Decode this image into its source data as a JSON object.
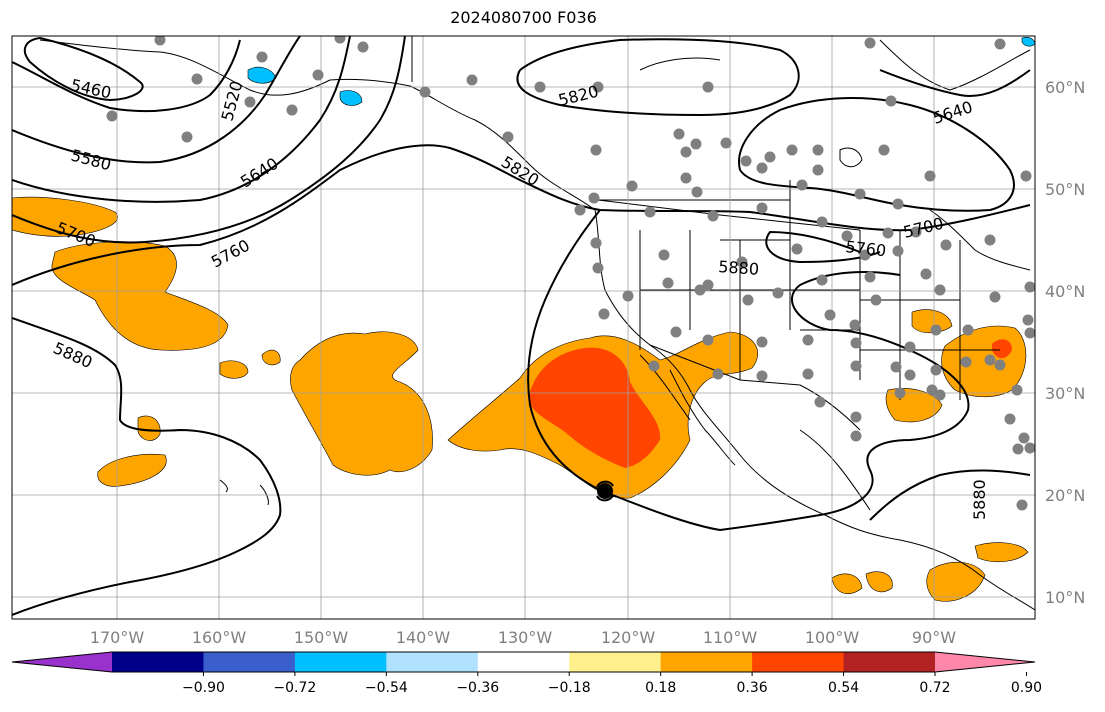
{
  "title": "2024080700 F036",
  "map": {
    "lon_labels": [
      "170°W",
      "160°W",
      "150°W",
      "140°W",
      "130°W",
      "120°W",
      "110°W",
      "100°W",
      "90°W"
    ],
    "lat_labels": [
      "60°N",
      "50°N",
      "40°N",
      "30°N",
      "20°N",
      "10°N"
    ],
    "contour_labels": [
      "5460",
      "5520",
      "5580",
      "5640",
      "5700",
      "5760",
      "5820",
      "5820",
      "5880",
      "5880",
      "5760",
      "5700",
      "5640",
      "5880"
    ],
    "fill_colors": {
      "orange": "#ffa500",
      "red_orange": "#ff4500",
      "deep_sky_blue": "#00bfff",
      "light_blue": "#add8e6"
    },
    "station_color": "#808080",
    "storm_icon": "tropical-cyclone-icon"
  },
  "colorbar": {
    "colors": [
      "#9932cc",
      "#00008b",
      "#3a5fcd",
      "#00bfff",
      "#b0e2ff",
      "#ffffff",
      "#fff08c",
      "#ffa500",
      "#ff4500",
      "#b22222",
      "#ff88aa"
    ],
    "tick_labels": [
      "−0.90",
      "−0.72",
      "−0.54",
      "−0.36",
      "−0.18",
      "0.18",
      "0.36",
      "0.54",
      "0.72",
      "0.90"
    ]
  }
}
